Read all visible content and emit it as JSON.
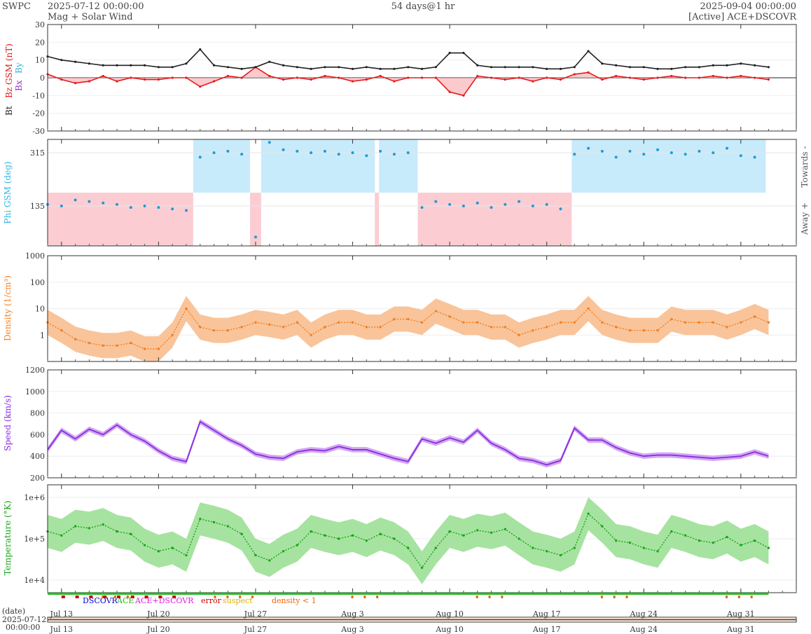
{
  "header": {
    "app": "SWPC",
    "start": "2025-07-12 00:00:00",
    "subtitle": "Mag + Solar Wind",
    "span": "54 days@1 hr",
    "end": "2025-09-04 00:00:00",
    "source": "[Active] ACE+DSCOVR"
  },
  "colors": {
    "bt": "#222222",
    "bz": "#e41a1c",
    "bz_fill": "#f8b4b8",
    "by": "#2fb4e0",
    "bx": "#9b30d0",
    "phi_towards": "#c8ebfb",
    "phi_away": "#fbcdd2",
    "phi_pts": "#1f9ad6",
    "density": "#f47f20",
    "density_fill": "#f9c49a",
    "speed": "#8a2be2",
    "speed_fill": "#d2a8f2",
    "temp": "#1aa51a",
    "temp_fill": "#a6e3a0",
    "ace": "#22bb22",
    "dscovr": "#0000cc",
    "error": "#cc0000",
    "suspect": "#e0b000",
    "density_lt1": "#ee6600"
  },
  "x_axis": {
    "range_days": [
      0,
      54
    ],
    "ticks": [
      {
        "label": "Jul 13",
        "day": 1
      },
      {
        "label": "Jul 20",
        "day": 8
      },
      {
        "label": "Jul 27",
        "day": 15
      },
      {
        "label": "Aug 3",
        "day": 22
      },
      {
        "label": "Aug 10",
        "day": 29
      },
      {
        "label": "Aug 17",
        "day": 36
      },
      {
        "label": "Aug 24",
        "day": 43
      },
      {
        "label": "Aug 31",
        "day": 50
      }
    ],
    "date_label": "(date)",
    "date_start": "2025-07-12",
    "time_start": "00:00:00"
  },
  "legend": {
    "dscovr": "DSCOVR",
    "ace": "ACE",
    "ace_dscovr": "ACE+DSCOVR",
    "error": "error",
    "suspect": "suspect",
    "density_lt1": "density < 1"
  },
  "chart_data": [
    {
      "type": "line",
      "panel": "mag",
      "ylabel_parts": [
        "Bt",
        "Bz GSM (nT)",
        "Bx",
        "By"
      ],
      "ylim": [
        -30,
        30
      ],
      "yticks": [
        "30",
        "20",
        "10",
        "0",
        "-10",
        "-20",
        "-30"
      ],
      "x_days": [
        0,
        1,
        2,
        3,
        4,
        5,
        6,
        7,
        8,
        9,
        10,
        11,
        12,
        13,
        14,
        15,
        16,
        17,
        18,
        19,
        20,
        21,
        22,
        23,
        24,
        25,
        26,
        27,
        28,
        29,
        30,
        31,
        32,
        33,
        34,
        35,
        36,
        37,
        38,
        39,
        40,
        41,
        42,
        43,
        44,
        45,
        46,
        47,
        48,
        49,
        50,
        51,
        52
      ],
      "series": [
        {
          "name": "Bt",
          "values": [
            12,
            10,
            9,
            8,
            7,
            7,
            7,
            7,
            6,
            6,
            8,
            16,
            7,
            6,
            5,
            6,
            9,
            7,
            6,
            5,
            6,
            6,
            5,
            6,
            5,
            5,
            6,
            5,
            6,
            14,
            14,
            7,
            6,
            6,
            6,
            6,
            5,
            5,
            6,
            15,
            8,
            7,
            6,
            6,
            5,
            5,
            6,
            6,
            7,
            7,
            8,
            7,
            6
          ]
        },
        {
          "name": "Bz",
          "values": [
            2,
            -1,
            -3,
            -2,
            1,
            -2,
            0,
            -1,
            -1,
            0,
            0,
            -5,
            -2,
            1,
            0,
            6,
            1,
            -1,
            0,
            -1,
            1,
            0,
            -2,
            -1,
            1,
            -2,
            0,
            0,
            0,
            -8,
            -10,
            1,
            0,
            -1,
            0,
            -2,
            0,
            -1,
            2,
            3,
            -1,
            1,
            0,
            -1,
            0,
            1,
            0,
            0,
            1,
            0,
            1,
            0,
            -1
          ]
        }
      ]
    },
    {
      "type": "scatter",
      "panel": "phi",
      "ylabel": "Phi GSM (deg)",
      "ylim": [
        0,
        360
      ],
      "yticks": [
        "315",
        "135"
      ],
      "right_labels": [
        "Towards -",
        "Away +"
      ],
      "sectors": [
        {
          "from_day": 0,
          "to_day": 10.5,
          "sector": "away"
        },
        {
          "from_day": 10.5,
          "to_day": 14.6,
          "sector": "towards"
        },
        {
          "from_day": 14.6,
          "to_day": 15.4,
          "sector": "away"
        },
        {
          "from_day": 15.4,
          "to_day": 23.6,
          "sector": "towards"
        },
        {
          "from_day": 23.6,
          "to_day": 23.9,
          "sector": "away"
        },
        {
          "from_day": 23.9,
          "to_day": 26.7,
          "sector": "towards"
        },
        {
          "from_day": 26.7,
          "to_day": 37.8,
          "sector": "away"
        },
        {
          "from_day": 37.8,
          "to_day": 51.8,
          "sector": "towards"
        }
      ],
      "x_days": [
        0,
        1,
        2,
        3,
        4,
        5,
        6,
        7,
        8,
        9,
        10,
        11,
        12,
        13,
        14,
        15,
        16,
        17,
        18,
        19,
        20,
        21,
        22,
        23,
        24,
        25,
        26,
        27,
        28,
        29,
        30,
        31,
        32,
        33,
        34,
        35,
        36,
        37,
        38,
        39,
        40,
        41,
        42,
        43,
        44,
        45,
        46,
        47,
        48,
        49,
        50,
        51
      ],
      "values": [
        140,
        135,
        155,
        150,
        145,
        140,
        130,
        135,
        130,
        125,
        120,
        300,
        315,
        320,
        310,
        30,
        350,
        325,
        320,
        315,
        320,
        310,
        315,
        305,
        320,
        310,
        315,
        130,
        150,
        140,
        135,
        145,
        130,
        140,
        150,
        135,
        140,
        125,
        310,
        330,
        320,
        300,
        320,
        310,
        325,
        315,
        310,
        320,
        315,
        330,
        305,
        300
      ]
    },
    {
      "type": "area",
      "panel": "density",
      "ylabel": "Density (1/cm³)",
      "yscale": "log",
      "ylim": [
        0.1,
        1000
      ],
      "yticks": [
        "1000",
        "100",
        "10",
        "1"
      ],
      "x_days": [
        0,
        1,
        2,
        3,
        4,
        5,
        6,
        7,
        8,
        9,
        10,
        11,
        12,
        13,
        14,
        15,
        16,
        17,
        18,
        19,
        20,
        21,
        22,
        23,
        24,
        25,
        26,
        27,
        28,
        29,
        30,
        31,
        32,
        33,
        34,
        35,
        36,
        37,
        38,
        39,
        40,
        41,
        42,
        43,
        44,
        45,
        46,
        47,
        48,
        49,
        50,
        51,
        52
      ],
      "values": [
        3,
        1.5,
        0.7,
        0.5,
        0.4,
        0.4,
        0.5,
        0.3,
        0.3,
        1,
        10,
        2,
        1.5,
        1.5,
        2,
        3,
        2.5,
        2,
        3,
        1,
        2,
        3,
        3,
        2,
        2,
        4,
        4,
        3,
        8,
        5,
        3,
        3,
        2,
        2,
        1,
        1.5,
        2,
        3,
        3,
        10,
        3,
        2,
        1.5,
        1.5,
        1.5,
        4,
        3,
        3,
        3,
        2,
        3,
        5,
        3
      ]
    },
    {
      "type": "line",
      "panel": "speed",
      "ylabel": "Speed (km/s)",
      "ylim": [
        200,
        1200
      ],
      "yticks": [
        "1200",
        "1000",
        "800",
        "600",
        "400",
        "200"
      ],
      "x_days": [
        0,
        1,
        2,
        3,
        4,
        5,
        6,
        7,
        8,
        9,
        10,
        11,
        12,
        13,
        14,
        15,
        16,
        17,
        18,
        19,
        20,
        21,
        22,
        23,
        24,
        25,
        26,
        27,
        28,
        29,
        30,
        31,
        32,
        33,
        34,
        35,
        36,
        37,
        38,
        39,
        40,
        41,
        42,
        43,
        44,
        45,
        46,
        47,
        48,
        49,
        50,
        51,
        52
      ],
      "values": [
        460,
        640,
        560,
        650,
        600,
        690,
        600,
        540,
        450,
        380,
        350,
        720,
        640,
        560,
        500,
        420,
        390,
        380,
        440,
        460,
        450,
        490,
        460,
        460,
        420,
        380,
        350,
        560,
        520,
        570,
        530,
        640,
        520,
        460,
        380,
        360,
        320,
        360,
        660,
        550,
        550,
        480,
        430,
        400,
        410,
        410,
        400,
        390,
        380,
        390,
        400,
        440,
        400
      ]
    },
    {
      "type": "line",
      "panel": "temperature",
      "ylabel": "Temperature (°K)",
      "yscale": "log",
      "ylim": [
        5000,
        2000000
      ],
      "yticks": [
        "1e+6",
        "1e+5",
        "1e+4"
      ],
      "x_days": [
        0,
        1,
        2,
        3,
        4,
        5,
        6,
        7,
        8,
        9,
        10,
        11,
        12,
        13,
        14,
        15,
        16,
        17,
        18,
        19,
        20,
        21,
        22,
        23,
        24,
        25,
        26,
        27,
        28,
        29,
        30,
        31,
        32,
        33,
        34,
        35,
        36,
        37,
        38,
        39,
        40,
        41,
        42,
        43,
        44,
        45,
        46,
        47,
        48,
        49,
        50,
        51,
        52
      ],
      "values": [
        150000,
        120000,
        200000,
        180000,
        220000,
        150000,
        130000,
        70000,
        50000,
        60000,
        40000,
        300000,
        250000,
        200000,
        130000,
        40000,
        30000,
        50000,
        70000,
        150000,
        120000,
        100000,
        120000,
        90000,
        130000,
        100000,
        60000,
        20000,
        60000,
        150000,
        120000,
        160000,
        140000,
        170000,
        100000,
        60000,
        50000,
        40000,
        60000,
        400000,
        200000,
        90000,
        80000,
        60000,
        50000,
        150000,
        120000,
        90000,
        80000,
        110000,
        70000,
        90000,
        60000
      ]
    }
  ]
}
